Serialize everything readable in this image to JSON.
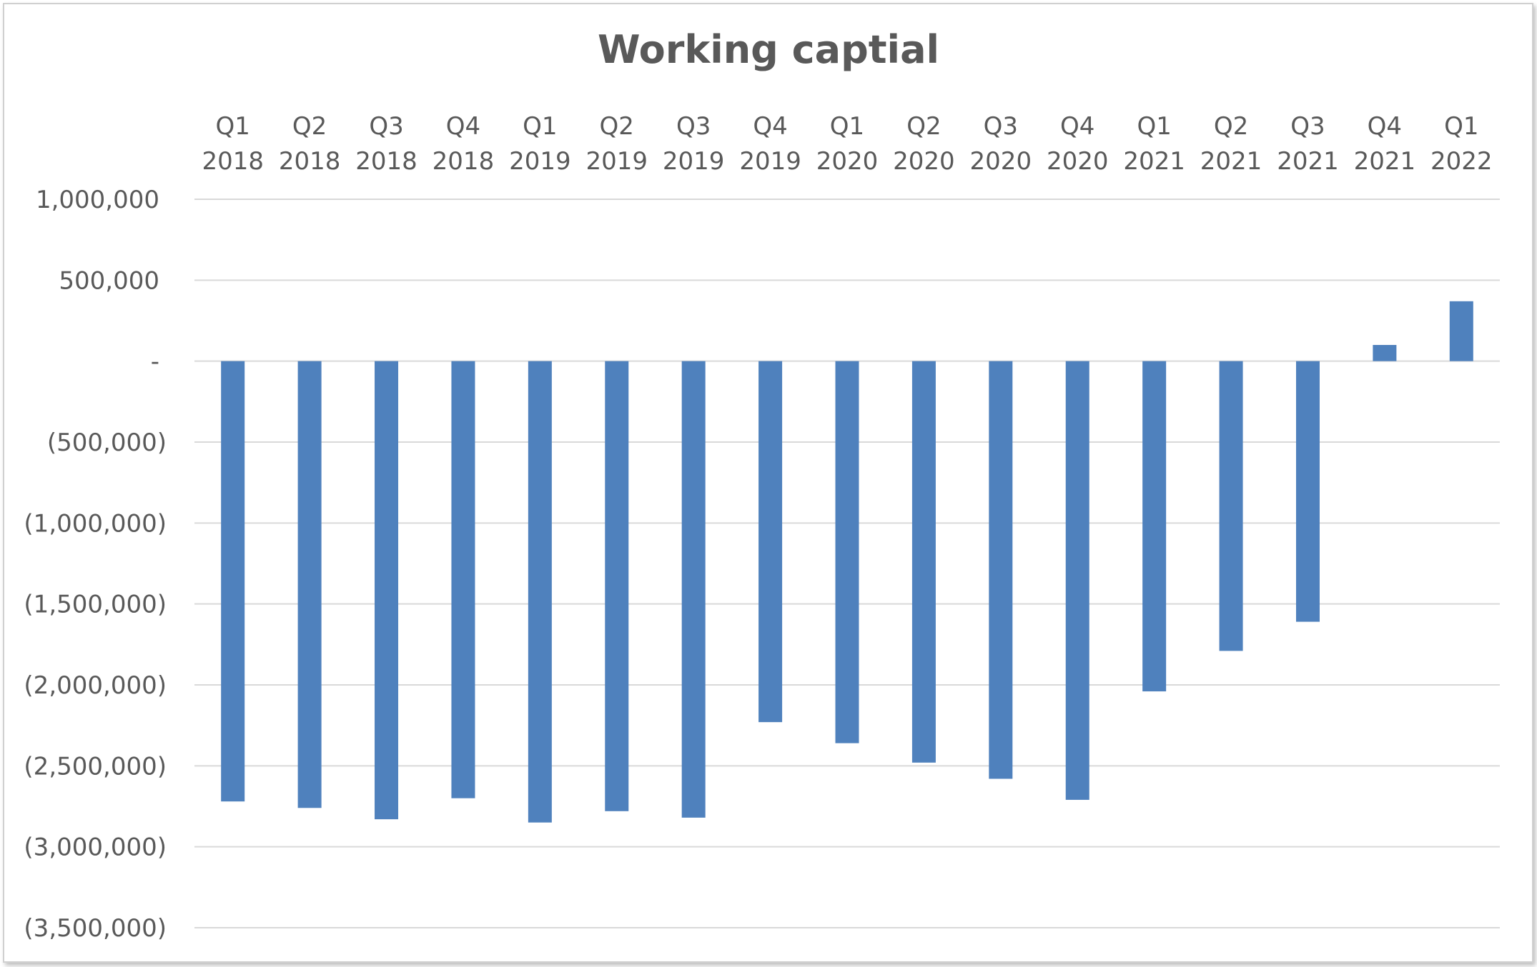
{
  "chart_data": {
    "type": "bar",
    "title": "Working captial",
    "xlabel": "",
    "ylabel": "",
    "categories": [
      [
        "Q1",
        "2018"
      ],
      [
        "Q2",
        "2018"
      ],
      [
        "Q3",
        "2018"
      ],
      [
        "Q4",
        "2018"
      ],
      [
        "Q1",
        "2019"
      ],
      [
        "Q2",
        "2019"
      ],
      [
        "Q3",
        "2019"
      ],
      [
        "Q4",
        "2019"
      ],
      [
        "Q1",
        "2020"
      ],
      [
        "Q2",
        "2020"
      ],
      [
        "Q3",
        "2020"
      ],
      [
        "Q4",
        "2020"
      ],
      [
        "Q1",
        "2021"
      ],
      [
        "Q2",
        "2021"
      ],
      [
        "Q3",
        "2021"
      ],
      [
        "Q4",
        "2021"
      ],
      [
        "Q1",
        "2022"
      ]
    ],
    "values": [
      -2720000,
      -2760000,
      -2830000,
      -2700000,
      -2850000,
      -2780000,
      -2820000,
      -2230000,
      -2360000,
      -2480000,
      -2580000,
      -2710000,
      -2040000,
      -1790000,
      -1610000,
      100000,
      370000
    ],
    "ylim": [
      -3500000,
      1000000
    ],
    "yticks": [
      1000000,
      500000,
      0,
      -500000,
      -1000000,
      -1500000,
      -2000000,
      -2500000,
      -3000000,
      -3500000
    ],
    "ytick_labels": [
      "1,000,000",
      "500,000",
      "-",
      "(500,000)",
      "(1,000,000)",
      "(1,500,000)",
      "(2,000,000)",
      "(2,500,000)",
      "(3,000,000)",
      "(3,500,000)"
    ],
    "grid": true,
    "x_axis_position": "top",
    "bar_color": "#4f81bd",
    "grid_color": "#d9d9d9",
    "text_color": "#595959"
  }
}
